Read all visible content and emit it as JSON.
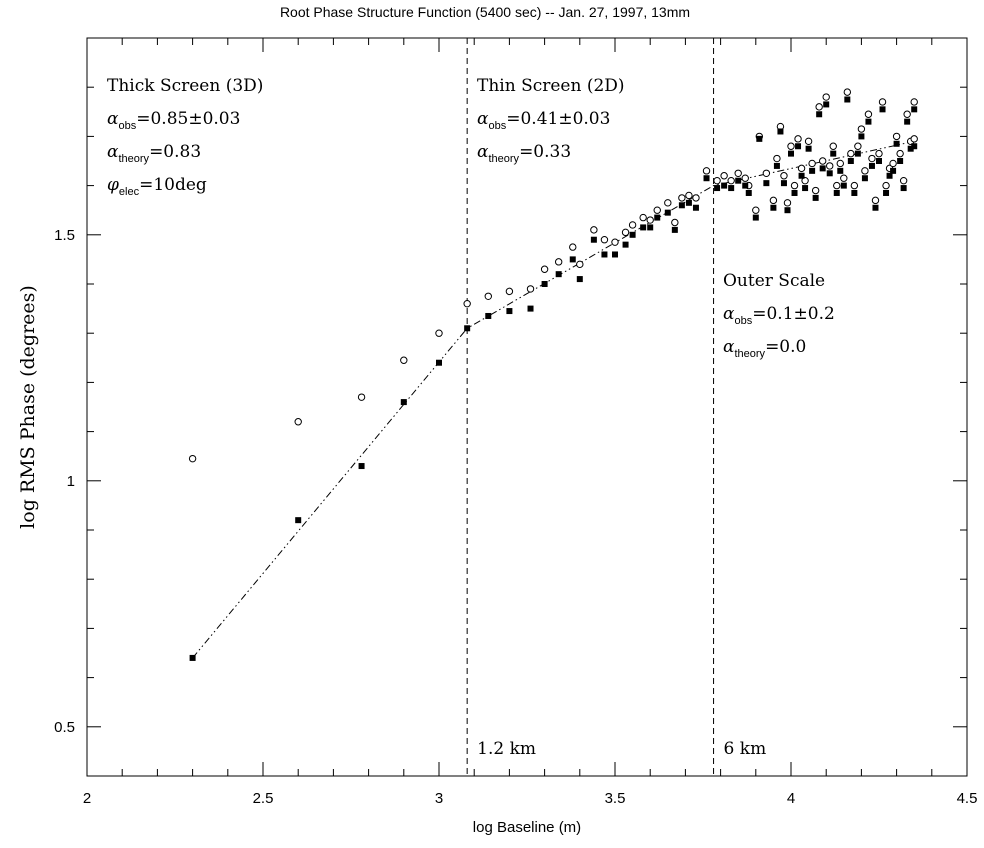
{
  "chart_data": {
    "type": "scatter",
    "title": "Root Phase Structure Function (5400 sec) -- Jan. 27, 1997, 13mm",
    "xlabel": "log Baseline (m)",
    "ylabel": "log RMS Phase (degrees)",
    "xlim": [
      2.0,
      4.5
    ],
    "ylim": [
      0.4,
      1.9
    ],
    "x_major_ticks": [
      2,
      2.5,
      3,
      3.5,
      4,
      4.5
    ],
    "x_tick_labels": [
      "2",
      "2.5",
      "3",
      "3.5",
      "4",
      "4.5"
    ],
    "y_major_ticks": [
      0.5,
      1,
      1.5
    ],
    "y_tick_labels": [
      "0.5",
      "1",
      "1.5"
    ],
    "grid": false,
    "regimes": [
      {
        "name": "Thick Screen (3D)",
        "lines": [
          {
            "sym": "α",
            "sub": "obs",
            "text": "=0.85±0.03"
          },
          {
            "sym": "α",
            "sub": "theory",
            "text": "=0.83"
          },
          {
            "sym": "φ",
            "sub": "elec",
            "text": "=10deg"
          }
        ]
      },
      {
        "name": "Thin Screen (2D)",
        "lines": [
          {
            "sym": "α",
            "sub": "obs",
            "text": "=0.41±0.03"
          },
          {
            "sym": "α",
            "sub": "theory",
            "text": "=0.33"
          }
        ]
      },
      {
        "name": "Outer Scale",
        "lines": [
          {
            "sym": "α",
            "sub": "obs",
            "text": "=0.1±0.2"
          },
          {
            "sym": "α",
            "sub": "theory",
            "text": "=0.0"
          }
        ]
      }
    ],
    "vertical_lines": [
      {
        "x": 3.08,
        "label": "1.2 km"
      },
      {
        "x": 3.78,
        "label": "6 km"
      }
    ],
    "fit_line": {
      "style": "dash-dot",
      "points": [
        [
          2.3,
          0.64
        ],
        [
          3.08,
          1.31
        ],
        [
          3.78,
          1.6
        ],
        [
          4.35,
          1.69
        ]
      ]
    },
    "series": [
      {
        "marker": "open-circle",
        "points": [
          [
            2.3,
            1.045
          ],
          [
            2.6,
            1.12
          ],
          [
            2.78,
            1.17
          ],
          [
            2.9,
            1.245
          ],
          [
            3.0,
            1.3
          ],
          [
            3.08,
            1.36
          ],
          [
            3.14,
            1.375
          ],
          [
            3.2,
            1.385
          ],
          [
            3.26,
            1.39
          ],
          [
            3.3,
            1.43
          ],
          [
            3.34,
            1.445
          ],
          [
            3.38,
            1.475
          ],
          [
            3.4,
            1.44
          ],
          [
            3.44,
            1.51
          ],
          [
            3.47,
            1.49
          ],
          [
            3.5,
            1.485
          ],
          [
            3.53,
            1.505
          ],
          [
            3.55,
            1.52
          ],
          [
            3.58,
            1.535
          ],
          [
            3.6,
            1.53
          ],
          [
            3.62,
            1.55
          ],
          [
            3.65,
            1.565
          ],
          [
            3.67,
            1.525
          ],
          [
            3.69,
            1.575
          ],
          [
            3.71,
            1.58
          ],
          [
            3.73,
            1.575
          ],
          [
            3.76,
            1.63
          ],
          [
            3.79,
            1.61
          ],
          [
            3.81,
            1.62
          ],
          [
            3.83,
            1.61
          ],
          [
            3.85,
            1.625
          ],
          [
            3.87,
            1.615
          ],
          [
            3.88,
            1.6
          ],
          [
            3.9,
            1.55
          ],
          [
            3.91,
            1.7
          ],
          [
            3.93,
            1.625
          ],
          [
            3.95,
            1.57
          ],
          [
            3.96,
            1.655
          ],
          [
            3.97,
            1.72
          ],
          [
            3.98,
            1.62
          ],
          [
            3.99,
            1.565
          ],
          [
            4.0,
            1.68
          ],
          [
            4.01,
            1.6
          ],
          [
            4.02,
            1.695
          ],
          [
            4.03,
            1.635
          ],
          [
            4.04,
            1.61
          ],
          [
            4.05,
            1.69
          ],
          [
            4.06,
            1.645
          ],
          [
            4.07,
            1.59
          ],
          [
            4.08,
            1.76
          ],
          [
            4.09,
            1.65
          ],
          [
            4.1,
            1.78
          ],
          [
            4.11,
            1.64
          ],
          [
            4.12,
            1.68
          ],
          [
            4.13,
            1.6
          ],
          [
            4.14,
            1.645
          ],
          [
            4.15,
            1.615
          ],
          [
            4.16,
            1.79
          ],
          [
            4.17,
            1.665
          ],
          [
            4.18,
            1.6
          ],
          [
            4.19,
            1.68
          ],
          [
            4.2,
            1.715
          ],
          [
            4.21,
            1.63
          ],
          [
            4.22,
            1.745
          ],
          [
            4.23,
            1.655
          ],
          [
            4.24,
            1.57
          ],
          [
            4.25,
            1.665
          ],
          [
            4.26,
            1.77
          ],
          [
            4.27,
            1.6
          ],
          [
            4.28,
            1.635
          ],
          [
            4.29,
            1.645
          ],
          [
            4.3,
            1.7
          ],
          [
            4.31,
            1.665
          ],
          [
            4.32,
            1.61
          ],
          [
            4.33,
            1.745
          ],
          [
            4.34,
            1.69
          ],
          [
            4.35,
            1.77
          ],
          [
            4.35,
            1.695
          ]
        ]
      },
      {
        "marker": "filled-square",
        "points": [
          [
            2.3,
            0.64
          ],
          [
            2.6,
            0.92
          ],
          [
            2.78,
            1.03
          ],
          [
            2.9,
            1.16
          ],
          [
            3.0,
            1.24
          ],
          [
            3.08,
            1.31
          ],
          [
            3.14,
            1.335
          ],
          [
            3.2,
            1.345
          ],
          [
            3.26,
            1.35
          ],
          [
            3.3,
            1.4
          ],
          [
            3.34,
            1.42
          ],
          [
            3.38,
            1.45
          ],
          [
            3.4,
            1.41
          ],
          [
            3.44,
            1.49
          ],
          [
            3.47,
            1.46
          ],
          [
            3.5,
            1.46
          ],
          [
            3.53,
            1.48
          ],
          [
            3.55,
            1.5
          ],
          [
            3.58,
            1.515
          ],
          [
            3.6,
            1.515
          ],
          [
            3.62,
            1.535
          ],
          [
            3.65,
            1.545
          ],
          [
            3.67,
            1.51
          ],
          [
            3.69,
            1.56
          ],
          [
            3.71,
            1.565
          ],
          [
            3.73,
            1.555
          ],
          [
            3.76,
            1.615
          ],
          [
            3.79,
            1.595
          ],
          [
            3.81,
            1.6
          ],
          [
            3.83,
            1.595
          ],
          [
            3.85,
            1.61
          ],
          [
            3.87,
            1.6
          ],
          [
            3.88,
            1.585
          ],
          [
            3.9,
            1.535
          ],
          [
            3.91,
            1.695
          ],
          [
            3.93,
            1.605
          ],
          [
            3.95,
            1.555
          ],
          [
            3.96,
            1.64
          ],
          [
            3.97,
            1.71
          ],
          [
            3.98,
            1.605
          ],
          [
            3.99,
            1.55
          ],
          [
            4.0,
            1.665
          ],
          [
            4.01,
            1.585
          ],
          [
            4.02,
            1.68
          ],
          [
            4.03,
            1.62
          ],
          [
            4.04,
            1.595
          ],
          [
            4.05,
            1.675
          ],
          [
            4.06,
            1.63
          ],
          [
            4.07,
            1.575
          ],
          [
            4.08,
            1.745
          ],
          [
            4.09,
            1.635
          ],
          [
            4.1,
            1.765
          ],
          [
            4.11,
            1.625
          ],
          [
            4.12,
            1.665
          ],
          [
            4.13,
            1.585
          ],
          [
            4.14,
            1.63
          ],
          [
            4.15,
            1.6
          ],
          [
            4.16,
            1.775
          ],
          [
            4.17,
            1.65
          ],
          [
            4.18,
            1.585
          ],
          [
            4.19,
            1.665
          ],
          [
            4.2,
            1.7
          ],
          [
            4.21,
            1.615
          ],
          [
            4.22,
            1.73
          ],
          [
            4.23,
            1.64
          ],
          [
            4.24,
            1.555
          ],
          [
            4.25,
            1.65
          ],
          [
            4.26,
            1.755
          ],
          [
            4.27,
            1.585
          ],
          [
            4.28,
            1.62
          ],
          [
            4.29,
            1.63
          ],
          [
            4.3,
            1.685
          ],
          [
            4.31,
            1.65
          ],
          [
            4.32,
            1.595
          ],
          [
            4.33,
            1.73
          ],
          [
            4.34,
            1.675
          ],
          [
            4.35,
            1.755
          ],
          [
            4.35,
            1.68
          ]
        ]
      }
    ]
  }
}
